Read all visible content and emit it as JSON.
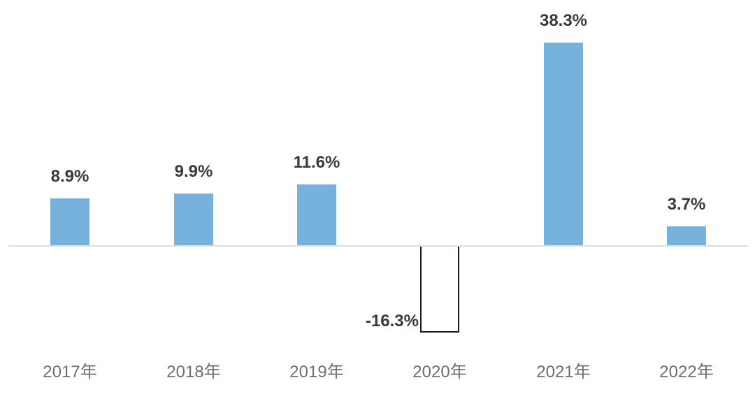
{
  "chart_data": {
    "type": "bar",
    "categories": [
      "2017年",
      "2018年",
      "2019年",
      "2020年",
      "2021年",
      "2022年"
    ],
    "values": [
      8.9,
      9.9,
      11.6,
      -16.3,
      38.3,
      3.7
    ],
    "data_labels": [
      "8.9%",
      "9.9%",
      "11.6%",
      "-16.3%",
      "38.3%",
      "3.7%"
    ],
    "title": "",
    "xlabel": "",
    "ylabel": "",
    "ylim": [
      -20,
      42
    ],
    "grid": false,
    "legend": null,
    "colors": {
      "bar_positive": "#76B2DC",
      "bar_negative_fill": "#FFFFFF",
      "bar_negative_border": "#1A1A1A",
      "axis_line": "#DDDDDD",
      "data_label": "#3A3A3A",
      "tick_label": "#6F6F6F",
      "background": "#FFFFFF"
    }
  }
}
